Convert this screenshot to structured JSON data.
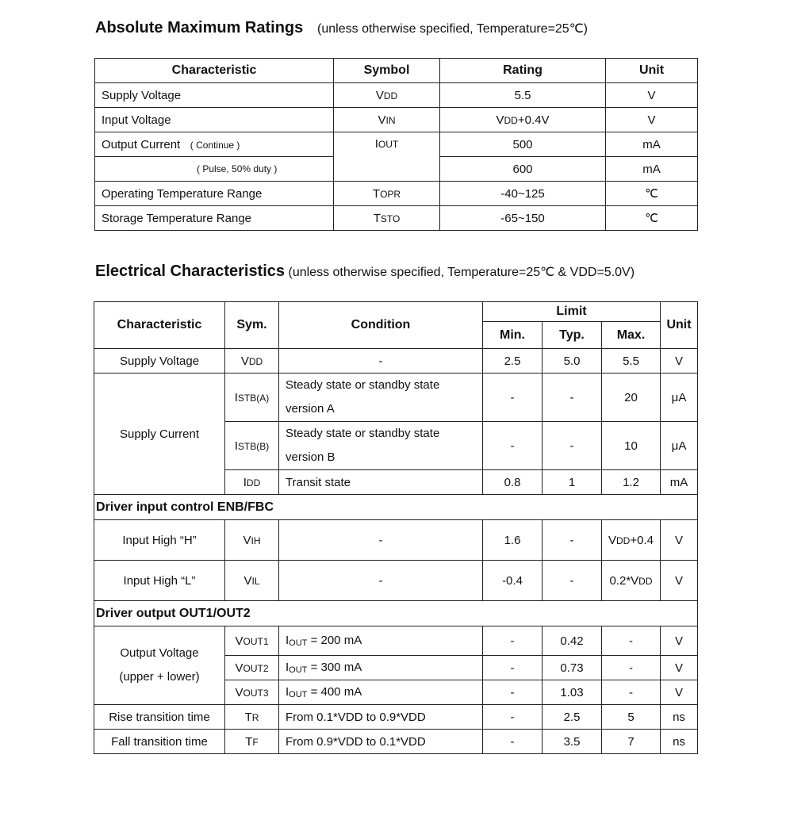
{
  "amr": {
    "title": "Absolute Maximum Ratings",
    "note": "(unless otherwise specified, Temperature=25℃)",
    "headers": [
      "Characteristic",
      "Symbol",
      "Rating",
      "Unit"
    ],
    "rows": [
      {
        "char": "Supply Voltage",
        "sym": "V",
        "symsub": "DD",
        "rating": "5.5",
        "unit": "V"
      },
      {
        "char": "Input Voltage",
        "sym": "V",
        "symsub": "IN",
        "rating_main": "V",
        "rating_sub": "DD",
        "rating_rest": "+0.4V",
        "unit": "V"
      },
      {
        "char": "Output Current",
        "char_note": "( Continue )",
        "sym": "I",
        "symsub": "OUT",
        "rating": "500",
        "unit": "mA"
      },
      {
        "char_note": "( Pulse, 50% duty )",
        "rating": "600",
        "unit": "mA"
      },
      {
        "char": "Operating Temperature Range",
        "sym": "T",
        "symsub": "OPR",
        "rating": "-40~125",
        "unit": "℃"
      },
      {
        "char": "Storage Temperature Range",
        "sym": "T",
        "symsub": "STO",
        "rating": "-65~150",
        "unit": "℃"
      }
    ]
  },
  "ec": {
    "title": "Electrical Characteristics",
    "note_a": "(unless otherwise specified, Temperature=25℃  & V",
    "note_sub": "DD",
    "note_b": "=5.0V)",
    "headers": {
      "char": "Characteristic",
      "sym": "Sym.",
      "cond": "Condition",
      "limit": "Limit",
      "min": "Min.",
      "typ": "Typ.",
      "max": "Max.",
      "unit": "Unit"
    },
    "supply_voltage": {
      "char": "Supply Voltage",
      "sym": "V",
      "symsub": "DD",
      "cond": "-",
      "min": "2.5",
      "typ": "5.0",
      "max": "5.5",
      "unit": "V"
    },
    "supply_current": {
      "char": "Supply Current",
      "rows": [
        {
          "sym": "I",
          "symsub": "STB(A)",
          "cond": "Steady state or standby state version A",
          "min": "-",
          "typ": "-",
          "max": "20",
          "unit": "μA"
        },
        {
          "sym": "I",
          "symsub": "STB(B)",
          "cond": "Steady state or standby state version B",
          "min": "-",
          "typ": "-",
          "max": "10",
          "unit": "μA"
        },
        {
          "sym": "I",
          "symsub": "DD",
          "cond": "Transit state",
          "min": "0.8",
          "typ": "1",
          "max": "1.2",
          "unit": "mA"
        }
      ]
    },
    "section_input": "Driver input control ENB/FBC",
    "vih": {
      "char": "Input High “H”",
      "sym": "V",
      "symsub": "IH",
      "cond": "-",
      "min": "1.6",
      "typ": "-",
      "max_main": "V",
      "max_sub": "DD",
      "max_rest": "+0.4",
      "unit": "V"
    },
    "vil": {
      "char": "Input High “L”",
      "sym": "V",
      "symsub": "IL",
      "cond": "-",
      "min": "-0.4",
      "typ": "-",
      "max_pre": "0.2*V",
      "max_sub": "DD",
      "unit": "V"
    },
    "section_output": "Driver output OUT1/OUT2",
    "vout": {
      "char1": "Output Voltage",
      "char2": "(upper + lower)",
      "rows": [
        {
          "sym": "V",
          "symsub": "OUT1",
          "cond_i": "I",
          "cond_sub": "OUT",
          "cond": " = 200 mA",
          "min": "-",
          "typ": "0.42",
          "max": "-",
          "unit": "V"
        },
        {
          "sym": "V",
          "symsub": "OUT2",
          "cond_i": "I",
          "cond_sub": "OUT",
          "cond": " = 300 mA",
          "min": "-",
          "typ": "0.73",
          "max": "-",
          "unit": "V"
        },
        {
          "sym": "V",
          "symsub": "OUT3",
          "cond_i": "I",
          "cond_sub": "OUT",
          "cond": " = 400 mA",
          "min": "-",
          "typ": "1.03",
          "max": "-",
          "unit": "V"
        }
      ]
    },
    "rise": {
      "char": "Rise transition time",
      "sym": "T",
      "symsub": "R",
      "cond": "From 0.1*VDD to 0.9*VDD",
      "min": "-",
      "typ": "2.5",
      "max": "5",
      "unit": "ns"
    },
    "fall": {
      "char": "Fall transition time",
      "sym": "T",
      "symsub": "F",
      "cond": "From 0.9*VDD to 0.1*VDD",
      "min": "-",
      "typ": "3.5",
      "max": "7",
      "unit": "ns"
    }
  }
}
